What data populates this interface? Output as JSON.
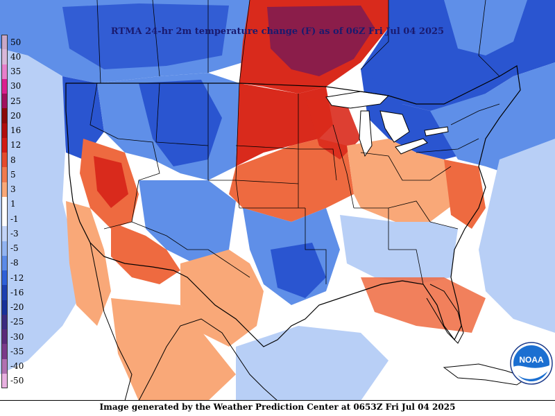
{
  "map": {
    "title": "RTMA 24-hr 2m temperature change (F) as of 06Z Fri Jul 04 2025",
    "footer": "Image generated by the Weather Prediction Center at 0653Z Fri Jul 04 2025",
    "logo_text": "NOAA",
    "legend": [
      {
        "label": "50",
        "color": "#c8a8c8"
      },
      {
        "label": "40",
        "color": "#d9b7d9"
      },
      {
        "label": "35",
        "color": "#e77fcb"
      },
      {
        "label": "30",
        "color": "#d9208f"
      },
      {
        "label": "25",
        "color": "#a0105e"
      },
      {
        "label": "20",
        "color": "#8b0a0a"
      },
      {
        "label": "16",
        "color": "#b00d0d"
      },
      {
        "label": "12",
        "color": "#d21a14"
      },
      {
        "label": "8",
        "color": "#e44a2c"
      },
      {
        "label": "5",
        "color": "#f07a4e"
      },
      {
        "label": "3",
        "color": "#f9a878"
      },
      {
        "label": "1",
        "color": "#ffffff"
      },
      {
        "label": "-1",
        "color": "#ffffff"
      },
      {
        "label": "-3",
        "color": "#c2d4f8"
      },
      {
        "label": "-5",
        "color": "#92b4f2"
      },
      {
        "label": "-8",
        "color": "#5a8ae8"
      },
      {
        "label": "-12",
        "color": "#2e5fd8"
      },
      {
        "label": "-16",
        "color": "#1c3fb0"
      },
      {
        "label": "-20",
        "color": "#16309a"
      },
      {
        "label": "-25",
        "color": "#3a2a80"
      },
      {
        "label": "-30",
        "color": "#5a2a7a"
      },
      {
        "label": "-35",
        "color": "#7a3a8a"
      },
      {
        "label": "-40",
        "color": "#b070b0"
      },
      {
        "label": "-50",
        "color": "#e8b0e0"
      }
    ],
    "colors": {
      "warm_light": "#f9a878",
      "warm_mid": "#ee6a40",
      "warm_strong": "#d92a1c",
      "warm_extreme": "#8b1d4a",
      "cool_light": "#b8cff6",
      "cool_mid": "#5f8fe8",
      "cool_strong": "#2a55d0",
      "neutral": "#ffffff",
      "noaa_blue": "#1b6fd1"
    }
  }
}
